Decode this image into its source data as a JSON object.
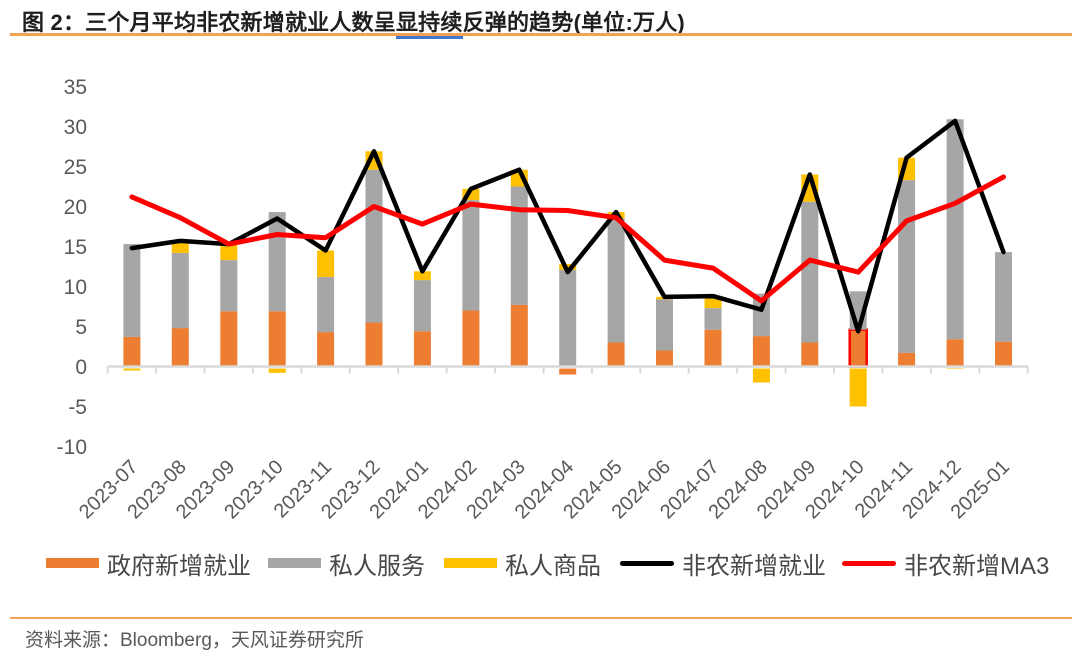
{
  "header": {
    "figure_title_prefix": "图 2：三个月平均非农新增就业人数呈",
    "figure_title_underlined": "显持续",
    "figure_title_suffix": "反弹的趋势(单位:万人)",
    "title_underline_color": "#4477CC",
    "accent_rule_color": "#F1A353"
  },
  "chart_data": {
    "type": "combo-stacked-bar-line",
    "title": "图 2：三个月平均非农新增就业人数呈显持续反弹的趋势(单位:万人)",
    "xlabel": "",
    "ylabel": "",
    "unit": "万人",
    "ylim": [
      -10,
      35
    ],
    "yticks": [
      35,
      30,
      25,
      20,
      15,
      10,
      5,
      0,
      -5,
      -10
    ],
    "grid": false,
    "legend_position": "bottom",
    "axis_color": "#D9D9D9",
    "tick_label_color": "#595959",
    "categories": [
      "2023-07",
      "2023-08",
      "2023-09",
      "2023-10",
      "2023-11",
      "2023-12",
      "2024-01",
      "2024-02",
      "2024-03",
      "2024-04",
      "2024-05",
      "2024-06",
      "2024-07",
      "2024-08",
      "2024-09",
      "2024-10",
      "2024-11",
      "2024-12",
      "2025-01"
    ],
    "series": [
      {
        "name": "政府新增就业",
        "type": "bar",
        "color": "#ED7D31",
        "values": [
          3.7,
          4.8,
          6.9,
          6.9,
          4.3,
          5.5,
          4.4,
          7.0,
          7.7,
          -1.0,
          3.0,
          2.0,
          4.6,
          3.8,
          3.0,
          4.6,
          1.7,
          3.4,
          3.1
        ]
      },
      {
        "name": "私人服务",
        "type": "bar",
        "color": "#A6A6A6",
        "values": [
          11.6,
          9.4,
          6.4,
          12.4,
          6.9,
          19.1,
          6.4,
          13.8,
          14.8,
          12.1,
          15.5,
          6.4,
          2.7,
          5.3,
          17.6,
          4.8,
          21.6,
          27.5,
          11.2
        ]
      },
      {
        "name": "私人商品",
        "type": "bar",
        "color": "#FFC000",
        "values": [
          -0.5,
          1.5,
          2.0,
          -0.8,
          3.3,
          2.3,
          1.1,
          1.4,
          2.1,
          0.7,
          0.8,
          0.3,
          1.5,
          -2.0,
          3.4,
          -5.0,
          2.8,
          -0.2,
          0.0
        ]
      },
      {
        "name": "非农新增就业",
        "type": "line",
        "color": "#000000",
        "values": [
          14.8,
          15.7,
          15.3,
          18.5,
          14.5,
          26.9,
          11.9,
          22.2,
          24.6,
          11.8,
          19.3,
          8.7,
          8.8,
          7.1,
          24.0,
          4.4,
          26.1,
          30.7,
          14.3
        ]
      },
      {
        "name": "非农新增MA3",
        "type": "line",
        "color": "#FF0000",
        "values": [
          21.2,
          18.6,
          15.3,
          16.5,
          16.1,
          20.0,
          17.8,
          20.3,
          19.6,
          19.5,
          18.6,
          13.3,
          12.3,
          8.2,
          13.3,
          11.8,
          18.2,
          20.4,
          23.7
        ]
      }
    ],
    "highlight": {
      "category": "2024-10",
      "series": "政府新增就业",
      "outline_color": "#FF0000"
    }
  },
  "footer": {
    "source": "资料来源：Bloomberg，天风证券研究所"
  }
}
